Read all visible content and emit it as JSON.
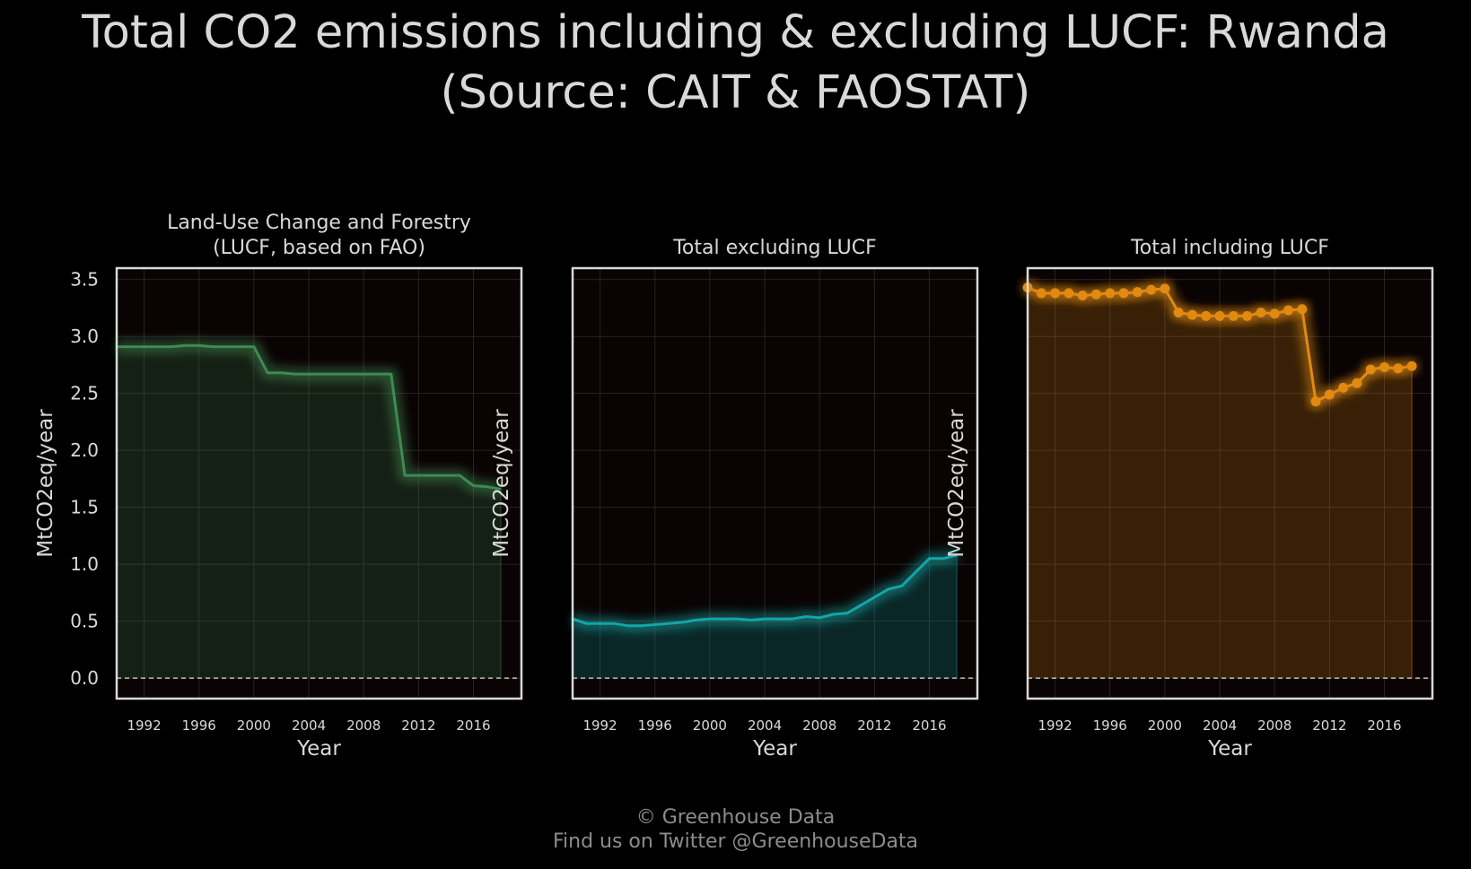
{
  "title": {
    "line1": "Total CO2 emissions including & excluding LUCF: Rwanda",
    "line2": "(Source: CAIT & FAOSTAT)"
  },
  "footer": {
    "line1": "© Greenhouse Data",
    "line2": "Find us on Twitter @GreenhouseData"
  },
  "colors": {
    "background": "#000000",
    "plot_background": "#0a0303",
    "lucf": "#3f8a52",
    "excl": "#13a6a6",
    "incl": "#e08a10",
    "axes": "#d9d9d9"
  },
  "chart_data": [
    {
      "type": "area",
      "title_lines": [
        "Land-Use Change and Forestry",
        "(LUCF, based on FAO)"
      ],
      "xlabel": "Year",
      "ylabel": "MtCO2eq/year",
      "xlim": [
        1990,
        2019.5
      ],
      "ylim": [
        -0.18,
        3.6
      ],
      "xticks": [
        1992,
        1996,
        2000,
        2004,
        2008,
        2012,
        2016
      ],
      "yticks": [
        0.0,
        0.5,
        1.0,
        1.5,
        2.0,
        2.5,
        3.0,
        3.5
      ],
      "ytick_labels": [
        "0.0",
        "0.5",
        "1.0",
        "1.5",
        "2.0",
        "2.5",
        "3.0",
        "3.5"
      ],
      "show_yticks": true,
      "markers": false,
      "zero_line": true,
      "color_key": "lucf",
      "series": [
        {
          "x": [
            1990,
            1991,
            1992,
            1993,
            1994,
            1995,
            1996,
            1997,
            1998,
            1999,
            2000,
            2001,
            2002,
            2003,
            2004,
            2005,
            2006,
            2007,
            2008,
            2009,
            2010,
            2011,
            2012,
            2013,
            2014,
            2015,
            2016,
            2017,
            2018
          ],
          "y": [
            2.91,
            2.91,
            2.91,
            2.91,
            2.91,
            2.92,
            2.92,
            2.91,
            2.91,
            2.91,
            2.91,
            2.68,
            2.68,
            2.67,
            2.67,
            2.67,
            2.67,
            2.67,
            2.67,
            2.67,
            2.67,
            1.78,
            1.78,
            1.78,
            1.78,
            1.78,
            1.69,
            1.68,
            1.66
          ]
        }
      ]
    },
    {
      "type": "area",
      "title_lines": [
        "Total excluding LUCF"
      ],
      "xlabel": "Year",
      "ylabel": "MtCO2eq/year",
      "xlim": [
        1990,
        2019.5
      ],
      "ylim": [
        -0.18,
        3.6
      ],
      "xticks": [
        1992,
        1996,
        2000,
        2004,
        2008,
        2012,
        2016
      ],
      "yticks": [],
      "ytick_labels": [],
      "show_yticks": false,
      "markers": false,
      "zero_line": true,
      "color_key": "excl",
      "series": [
        {
          "x": [
            1990,
            1991,
            1992,
            1993,
            1994,
            1995,
            1996,
            1997,
            1998,
            1999,
            2000,
            2001,
            2002,
            2003,
            2004,
            2005,
            2006,
            2007,
            2008,
            2009,
            2010,
            2011,
            2012,
            2013,
            2014,
            2015,
            2016,
            2017,
            2018
          ],
          "y": [
            0.52,
            0.48,
            0.48,
            0.48,
            0.46,
            0.46,
            0.47,
            0.48,
            0.49,
            0.51,
            0.52,
            0.52,
            0.52,
            0.51,
            0.52,
            0.52,
            0.52,
            0.54,
            0.53,
            0.56,
            0.57,
            0.64,
            0.71,
            0.78,
            0.81,
            0.93,
            1.05,
            1.05,
            1.08
          ]
        }
      ]
    },
    {
      "type": "area",
      "title_lines": [
        "Total including LUCF"
      ],
      "xlabel": "Year",
      "ylabel": "MtCO2eq/year",
      "xlim": [
        1990,
        2019.5
      ],
      "ylim": [
        -0.18,
        3.6
      ],
      "xticks": [
        1992,
        1996,
        2000,
        2004,
        2008,
        2012,
        2016
      ],
      "yticks": [],
      "ytick_labels": [],
      "show_yticks": false,
      "markers": true,
      "zero_line": true,
      "color_key": "incl",
      "series": [
        {
          "x": [
            1990,
            1991,
            1992,
            1993,
            1994,
            1995,
            1996,
            1997,
            1998,
            1999,
            2000,
            2001,
            2002,
            2003,
            2004,
            2005,
            2006,
            2007,
            2008,
            2009,
            2010,
            2011,
            2012,
            2013,
            2014,
            2015,
            2016,
            2017,
            2018
          ],
          "y": [
            3.43,
            3.38,
            3.38,
            3.38,
            3.36,
            3.37,
            3.38,
            3.38,
            3.39,
            3.41,
            3.42,
            3.21,
            3.19,
            3.18,
            3.18,
            3.18,
            3.18,
            3.21,
            3.2,
            3.23,
            3.24,
            2.43,
            2.49,
            2.55,
            2.59,
            2.71,
            2.73,
            2.72,
            2.74
          ]
        }
      ]
    }
  ]
}
